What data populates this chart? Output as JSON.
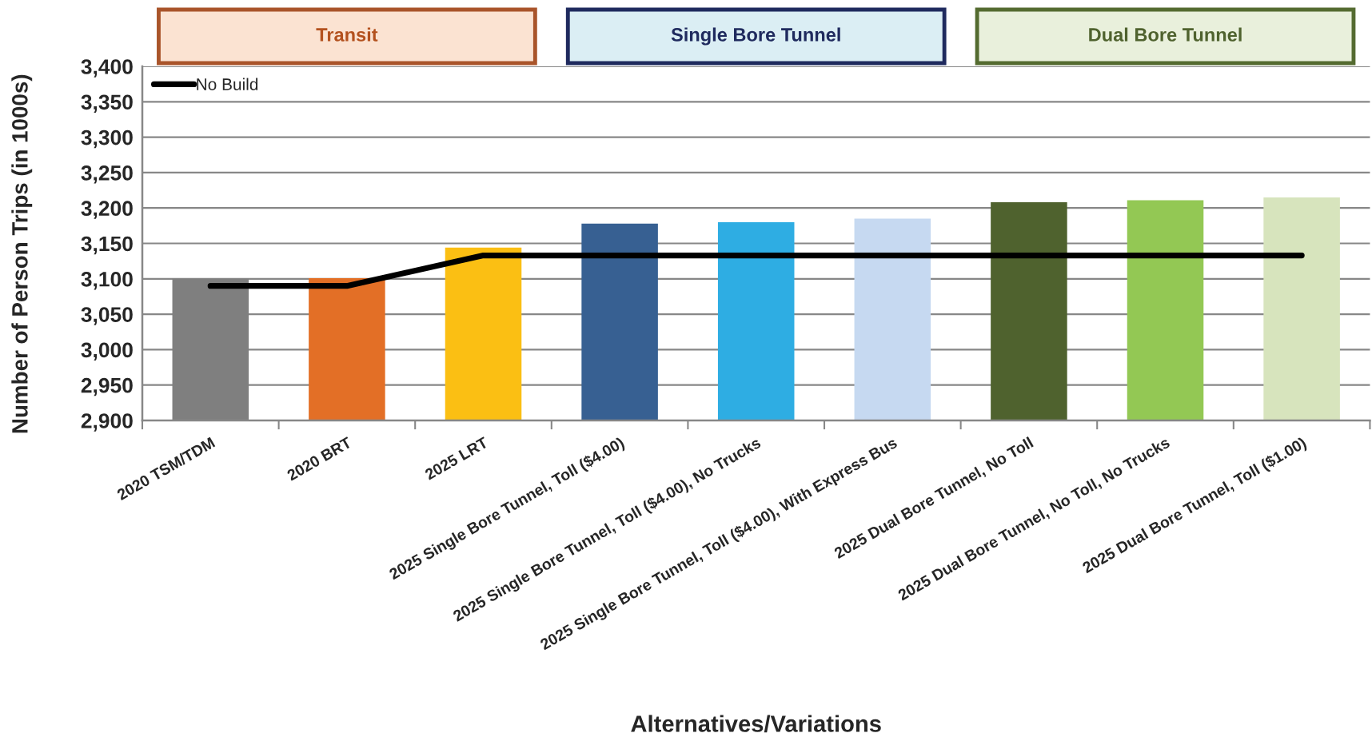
{
  "chart_data": {
    "type": "bar",
    "xlabel": "Alternatives/Variations",
    "ylabel": "Number of Person Trips (in 1000s)",
    "annotations": [
      "Transit",
      "Single Bore Tunnel",
      "Dual Bore Tunnel"
    ],
    "categories": [
      "2020 TSM/TDM",
      "2020 BRT",
      "2025 LRT",
      "2025 Single Bore Tunnel, Toll ($4.00)",
      "2025 Single Bore Tunnel, Toll ($4.00), No Trucks",
      "2025 Single Bore Tunnel, Toll ($4.00), With Express Bus",
      "2025 Dual Bore Tunnel, No Toll",
      "2025 Dual Bore Tunnel, No Toll, No Trucks",
      "2025 Dual Bore Tunnel, Toll ($1.00)"
    ],
    "series": [
      {
        "colors": [
          "#7f7f7f",
          "#e36f26",
          "#fbbf13",
          "#376092",
          "#2eade3",
          "#c6d9f1",
          "#4f622e",
          "#93c854",
          "#d7e4bd"
        ],
        "values": [
          3100,
          3101,
          3144,
          3178,
          3180,
          3185,
          3208,
          3211,
          3215
        ]
      },
      {
        "type": "line",
        "name": "No Build",
        "color": "#000000",
        "values": [
          3090,
          3090,
          3133,
          3133,
          3133,
          3133,
          3133,
          3133,
          3133
        ]
      }
    ],
    "ylim": [
      2900,
      3400
    ],
    "yticks": [
      {
        "value": 2900,
        "label": "2,900"
      },
      {
        "value": 2950,
        "label": "2,950"
      },
      {
        "value": 3000,
        "label": "3,000"
      },
      {
        "value": 3050,
        "label": "3,050"
      },
      {
        "value": 3100,
        "label": "3,100"
      },
      {
        "value": 3150,
        "label": "3,150"
      },
      {
        "value": 3200,
        "label": "3,200"
      },
      {
        "value": 3250,
        "label": "3,250"
      },
      {
        "value": 3300,
        "label": "3,300"
      },
      {
        "value": 3350,
        "label": "3,350"
      },
      {
        "value": 3400,
        "label": "3,400"
      }
    ],
    "grid": "y",
    "legend": "top left"
  }
}
